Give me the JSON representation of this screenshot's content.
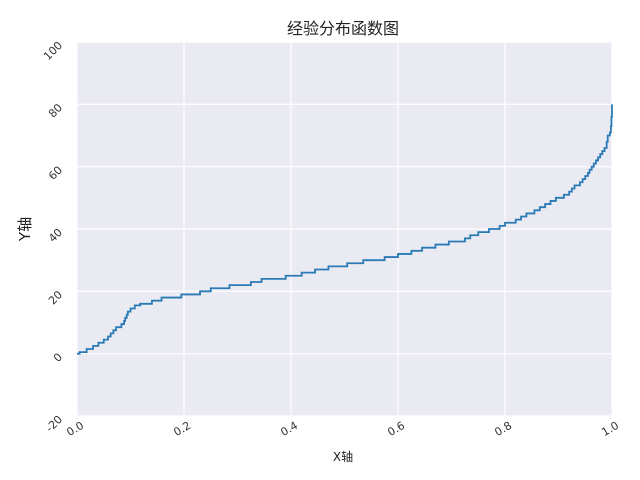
{
  "chart_data": {
    "type": "line",
    "title": "经验分布函数图",
    "xlabel": "X轴",
    "ylabel": "Y轴",
    "xlim": [
      0.0,
      1.0
    ],
    "ylim": [
      -20,
      100
    ],
    "x_ticks": [
      "0.0",
      "0.2",
      "0.4",
      "0.6",
      "0.8",
      "1.0"
    ],
    "y_ticks": [
      "-20",
      "0",
      "20",
      "40",
      "60",
      "80",
      "100"
    ],
    "grid": true,
    "colors": {
      "background": "#eaeaf2",
      "grid": "#ffffff",
      "line": "#2a7ab6"
    },
    "series": [
      {
        "name": "",
        "step": true,
        "points": [
          [
            0.0,
            0
          ],
          [
            0.005,
            0.5
          ],
          [
            0.018,
            1.5
          ],
          [
            0.03,
            2.5
          ],
          [
            0.04,
            3.5
          ],
          [
            0.05,
            4.5
          ],
          [
            0.058,
            5.5
          ],
          [
            0.063,
            6.5
          ],
          [
            0.068,
            7.5
          ],
          [
            0.073,
            8.5
          ],
          [
            0.083,
            9.5
          ],
          [
            0.088,
            10.5
          ],
          [
            0.09,
            11.5
          ],
          [
            0.093,
            12.5
          ],
          [
            0.095,
            13.5
          ],
          [
            0.1,
            14.5
          ],
          [
            0.108,
            15.5
          ],
          [
            0.118,
            16.0
          ],
          [
            0.14,
            17.0
          ],
          [
            0.158,
            18.0
          ],
          [
            0.195,
            19.0
          ],
          [
            0.23,
            20.0
          ],
          [
            0.25,
            21.0
          ],
          [
            0.285,
            22.0
          ],
          [
            0.325,
            23.0
          ],
          [
            0.345,
            24.0
          ],
          [
            0.39,
            25.0
          ],
          [
            0.42,
            26.0
          ],
          [
            0.445,
            27.0
          ],
          [
            0.47,
            28.0
          ],
          [
            0.505,
            29.0
          ],
          [
            0.535,
            30.0
          ],
          [
            0.575,
            31.0
          ],
          [
            0.6,
            32.0
          ],
          [
            0.625,
            33.0
          ],
          [
            0.645,
            34.0
          ],
          [
            0.67,
            35.0
          ],
          [
            0.695,
            36.0
          ],
          [
            0.725,
            37.0
          ],
          [
            0.735,
            38.0
          ],
          [
            0.75,
            39.0
          ],
          [
            0.77,
            40.0
          ],
          [
            0.79,
            41.0
          ],
          [
            0.8,
            42.0
          ],
          [
            0.82,
            43.0
          ],
          [
            0.83,
            44.0
          ],
          [
            0.84,
            45.0
          ],
          [
            0.855,
            46.0
          ],
          [
            0.865,
            47.0
          ],
          [
            0.875,
            48.0
          ],
          [
            0.885,
            49.0
          ],
          [
            0.895,
            50.0
          ],
          [
            0.91,
            51.0
          ],
          [
            0.92,
            52.0
          ],
          [
            0.925,
            53.0
          ],
          [
            0.93,
            54.0
          ],
          [
            0.94,
            55.0
          ],
          [
            0.945,
            56.0
          ],
          [
            0.95,
            57.0
          ],
          [
            0.955,
            58.0
          ],
          [
            0.958,
            59.0
          ],
          [
            0.962,
            60.0
          ],
          [
            0.966,
            61.0
          ],
          [
            0.97,
            62.0
          ],
          [
            0.974,
            63.0
          ],
          [
            0.978,
            64.0
          ],
          [
            0.982,
            65.0
          ],
          [
            0.986,
            66.0
          ],
          [
            0.99,
            68.0
          ],
          [
            0.992,
            70.0
          ],
          [
            0.996,
            71.0
          ],
          [
            0.998,
            73.0
          ],
          [
            0.999,
            76.0
          ],
          [
            1.0,
            80.0
          ]
        ]
      }
    ]
  }
}
